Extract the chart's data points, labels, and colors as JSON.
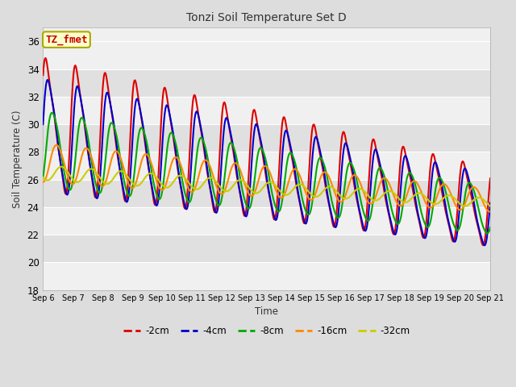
{
  "title": "Tonzi Soil Temperature Set D",
  "xlabel": "Time",
  "ylabel": "Soil Temperature (C)",
  "ylim": [
    18,
    37
  ],
  "yticks": [
    18,
    20,
    22,
    24,
    26,
    28,
    30,
    32,
    34,
    36
  ],
  "x_labels": [
    "Sep 6",
    "Sep 7",
    "Sep 8",
    "Sep 9",
    "Sep 10",
    "Sep 11",
    "Sep 12",
    "Sep 13",
    "Sep 14",
    "Sep 15",
    "Sep 16",
    "Sep 17",
    "Sep 18",
    "Sep 19",
    "Sep 20",
    "Sep 21"
  ],
  "annotation_text": "TZ_fmet",
  "annotation_bg": "#ffffcc",
  "annotation_border": "#aaa800",
  "annotation_text_color": "#cc0000",
  "colors": [
    "#dd0000",
    "#0000cc",
    "#00aa00",
    "#ff8800",
    "#cccc00"
  ],
  "linewidths": [
    1.5,
    1.5,
    1.5,
    1.5,
    1.5
  ],
  "bg_color": "#dddddd",
  "plot_bg_light": "#f0f0f0",
  "plot_bg_dark": "#e0e0e0",
  "grid_color": "#ffffff",
  "legend_labels": [
    "-2cm",
    "-4cm",
    "-8cm",
    "-16cm",
    "-32cm"
  ]
}
